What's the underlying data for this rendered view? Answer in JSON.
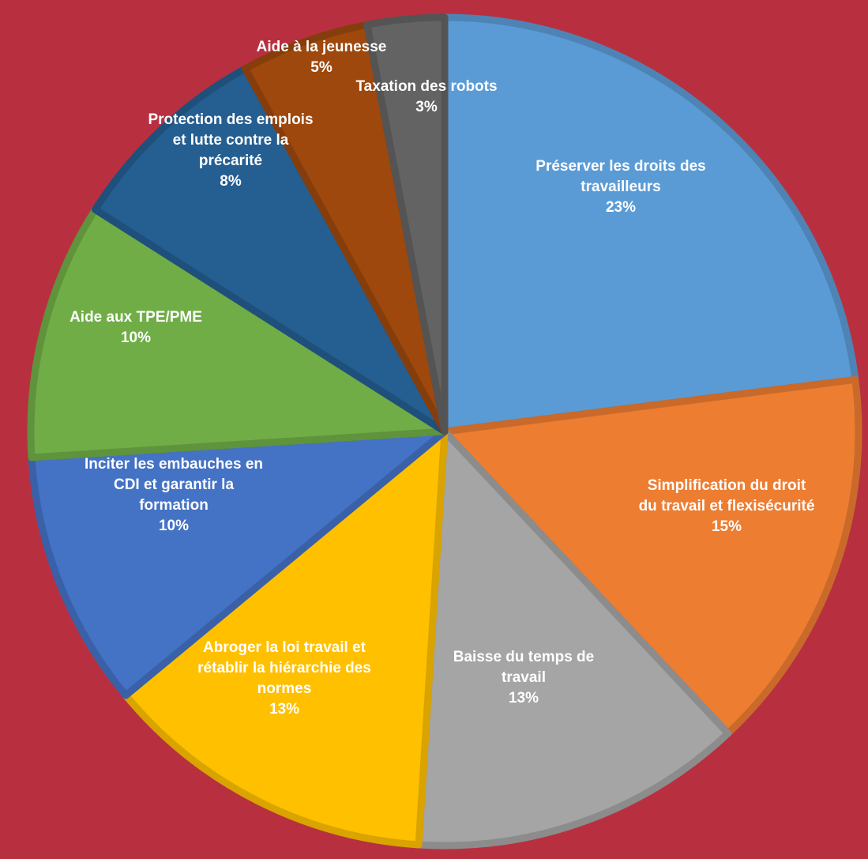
{
  "background_color": "#b83040",
  "chart_data": {
    "type": "pie",
    "start_angle_deg": 0,
    "direction": "clockwise",
    "slices": [
      {
        "label": "Préserver les droits des travailleurs",
        "value": 23,
        "display": "23%",
        "color": "#5b9bd5"
      },
      {
        "label": "Simplification du droit du travail et flexisécurité",
        "value": 15,
        "display": "15%",
        "color": "#ed7d31"
      },
      {
        "label": "Baisse du temps de travail",
        "value": 13,
        "display": "13%",
        "color": "#a5a5a5"
      },
      {
        "label": "Abroger la loi travail et rétablir la hiérarchie des normes",
        "value": 13,
        "display": "13%",
        "color": "#ffc000"
      },
      {
        "label": "Inciter les embauches en CDI et garantir la formation",
        "value": 10,
        "display": "10%",
        "color": "#4472c4"
      },
      {
        "label": "Aide aux TPE/PME",
        "value": 10,
        "display": "10%",
        "color": "#70ad47"
      },
      {
        "label": "Protection des emplois et lutte contre la précarité",
        "value": 8,
        "display": "8%",
        "color": "#255e91"
      },
      {
        "label": "Aide à la jeunesse",
        "value": 5,
        "display": "5%",
        "color": "#9e480e"
      },
      {
        "label": "Taxation des robots",
        "value": 3,
        "display": "3%",
        "color": "#636363"
      }
    ]
  }
}
